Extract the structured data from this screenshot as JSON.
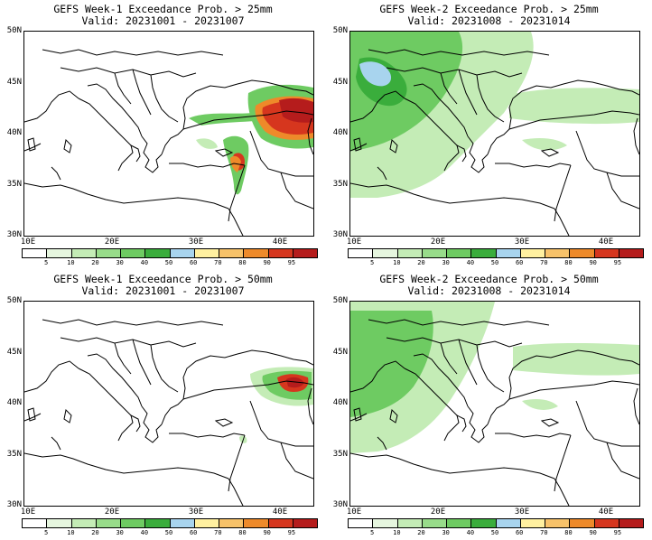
{
  "panels": [
    {
      "title": "GEFS Week-1 Exceedance Prob. > 25mm",
      "valid": "Valid: 20231001 - 20231007"
    },
    {
      "title": "GEFS Week-2 Exceedance Prob. > 25mm",
      "valid": "Valid: 20231008 - 20231014"
    },
    {
      "title": "GEFS Week-1 Exceedance Prob. > 50mm",
      "valid": "Valid: 20231001 - 20231007"
    },
    {
      "title": "GEFS Week-2 Exceedance Prob. > 50mm",
      "valid": "Valid: 20231008 - 20231014"
    }
  ],
  "lat_labels": [
    "50N",
    "45N",
    "40N",
    "35N",
    "30N"
  ],
  "lon_labels": [
    "10E",
    "20E",
    "30E",
    "40E"
  ],
  "colorbar": {
    "labels": [
      "5",
      "10",
      "20",
      "30",
      "40",
      "50",
      "60",
      "70",
      "80",
      "90",
      "95"
    ],
    "colors": [
      "#ffffff",
      "#e6f6df",
      "#c4ecb6",
      "#98dc8a",
      "#6ecb62",
      "#3aad3c",
      "#a8d4ee",
      "#fff0a0",
      "#f7c26a",
      "#ee8a2a",
      "#d6361e",
      "#b51c1c"
    ]
  },
  "colors": {
    "land_line": "#000000",
    "light_green": "#c4ecb6",
    "green": "#6ecb62",
    "dark_green": "#3aad3c",
    "blue": "#a8d4ee",
    "orange": "#ee8a2a",
    "red": "#d6361e",
    "dark_red": "#b51c1c"
  }
}
